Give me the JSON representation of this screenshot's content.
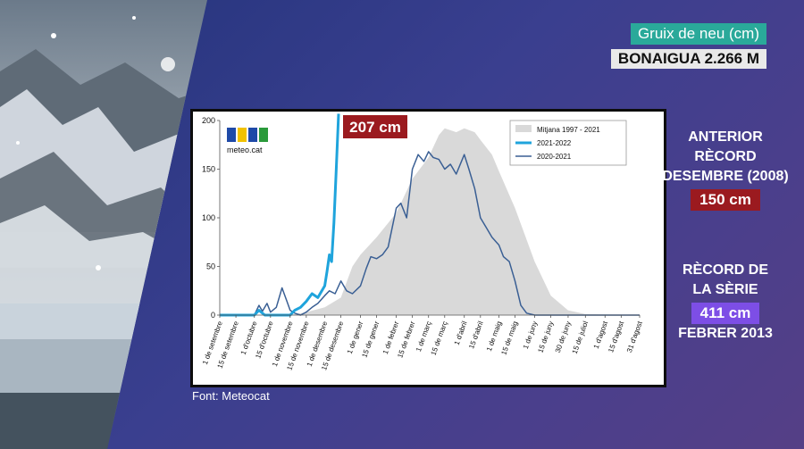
{
  "header": {
    "title": "Gruix de neu (cm)",
    "station": "BONAIGUA 2.266 M"
  },
  "chart_data": {
    "type": "area",
    "title": "",
    "xlabel": "",
    "ylabel": "",
    "ylim": [
      0,
      200
    ],
    "yticks": [
      0,
      50,
      100,
      150,
      200
    ],
    "x_tick_labels": [
      "1 de setembre",
      "15 de setembre",
      "1 d'octubre",
      "15 d'octubre",
      "1 de novembre",
      "15 de novembre",
      "1 de desembre",
      "15 de desembre",
      "1 de gener",
      "15 de gener",
      "1 de febrer",
      "15 de febrer",
      "1 de març",
      "15 de març",
      "1 d'abril",
      "15 d'abril",
      "1 de maig",
      "15 de maig",
      "1 de juny",
      "15 de juny",
      "30 de juny",
      "15 de juliol",
      "1 d'agost",
      "15 d'agost",
      "31 d'agost"
    ],
    "legend": {
      "position": "top-right",
      "entries": [
        "Mitjana  1997 - 2021",
        "2021-2022",
        "2020-2021"
      ]
    },
    "x_dates": [
      "09-01",
      "09-15",
      "10-01",
      "10-15",
      "11-01",
      "11-15",
      "12-01",
      "12-15",
      "01-01",
      "01-15",
      "02-01",
      "02-15",
      "03-01",
      "03-15",
      "04-01",
      "04-15",
      "05-01",
      "05-15",
      "06-01",
      "06-15",
      "06-30",
      "07-15",
      "08-01",
      "08-15",
      "08-31"
    ],
    "series": [
      {
        "name": "Mitjana  1997 - 2021",
        "color": "#d9d9d9",
        "style": "area",
        "x": [
          "09-01",
          "10-15",
          "11-01",
          "11-15",
          "12-01",
          "12-15",
          "12-25",
          "01-01",
          "01-15",
          "02-01",
          "02-15",
          "03-01",
          "03-10",
          "03-15",
          "03-25",
          "04-01",
          "04-10",
          "04-15",
          "04-25",
          "05-01",
          "05-15",
          "06-01",
          "06-15",
          "06-30",
          "07-15",
          "08-31"
        ],
        "y": [
          0,
          0,
          0,
          3,
          8,
          18,
          50,
          62,
          80,
          105,
          140,
          162,
          185,
          192,
          188,
          192,
          188,
          180,
          165,
          148,
          110,
          55,
          20,
          5,
          1,
          0
        ]
      },
      {
        "name": "2020-2021",
        "color": "#3a5f94",
        "style": "line",
        "x": [
          "09-01",
          "10-01",
          "10-05",
          "10-08",
          "10-12",
          "10-15",
          "10-20",
          "10-25",
          "10-29",
          "11-01",
          "11-05",
          "11-10",
          "11-15",
          "11-20",
          "11-25",
          "12-01",
          "12-05",
          "12-10",
          "12-15",
          "12-20",
          "12-25",
          "01-01",
          "01-06",
          "01-10",
          "01-15",
          "01-20",
          "01-25",
          "02-01",
          "02-05",
          "02-10",
          "02-15",
          "02-20",
          "02-25",
          "03-01",
          "03-05",
          "03-10",
          "03-15",
          "03-20",
          "03-25",
          "04-01",
          "04-05",
          "04-10",
          "04-15",
          "04-20",
          "04-25",
          "05-01",
          "05-05",
          "05-10",
          "05-15",
          "05-20",
          "05-25",
          "06-01",
          "08-31"
        ],
        "y": [
          0,
          0,
          10,
          4,
          12,
          3,
          8,
          28,
          15,
          5,
          2,
          0,
          3,
          8,
          12,
          20,
          25,
          22,
          35,
          25,
          22,
          30,
          48,
          60,
          58,
          62,
          70,
          110,
          115,
          100,
          150,
          165,
          158,
          168,
          162,
          160,
          150,
          155,
          145,
          165,
          150,
          130,
          100,
          90,
          80,
          72,
          60,
          55,
          35,
          10,
          2,
          0,
          0
        ]
      },
      {
        "name": "2021-2022",
        "color": "#1fa4dc",
        "style": "line-bold",
        "x": [
          "09-01",
          "10-01",
          "10-05",
          "10-10",
          "10-15",
          "10-20",
          "10-25",
          "11-01",
          "11-05",
          "11-10",
          "11-15",
          "11-20",
          "11-25",
          "12-01",
          "12-03",
          "12-05",
          "12-07",
          "12-09",
          "12-11",
          "12-13"
        ],
        "y": [
          0,
          0,
          5,
          0,
          0,
          0,
          0,
          0,
          5,
          8,
          14,
          22,
          18,
          30,
          45,
          62,
          55,
          95,
          150,
          207
        ]
      }
    ],
    "annotation": "207 cm"
  },
  "source": "Font: Meteocat",
  "logo_text": "meteo.cat",
  "side_panel": {
    "previous_record_lines": [
      "ANTERIOR",
      "RÈCORD",
      "DESEMBRE (2008)"
    ],
    "previous_record_value": "150 cm",
    "series_record_lines": [
      "RÈCORD DE",
      "LA SÈRIE"
    ],
    "series_record_value": "411 cm",
    "series_record_date": "FEBRER 2013"
  },
  "colors": {
    "background": "#3a3f8f",
    "title_tag": "#2aa99a",
    "red_badge": "#9b1a1f",
    "violet_badge": "#7d4ee6",
    "line_2021_2022": "#1fa4dc",
    "line_2020_2021": "#3a5f94",
    "mean_area": "#d9d9d9"
  }
}
